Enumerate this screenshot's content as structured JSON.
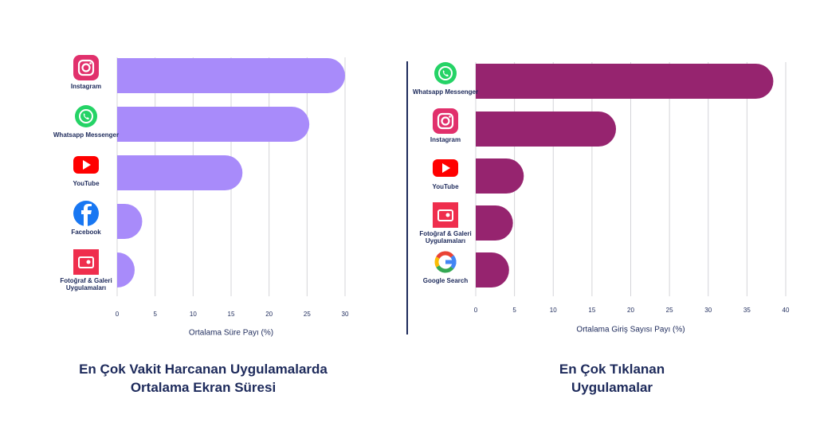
{
  "chart_data": [
    {
      "type": "bar",
      "orientation": "horizontal",
      "title": [
        "En Çok Vakit Harcanan Uygulamalarda",
        "Ortalama Ekran Süresi"
      ],
      "x_label": "Ortalama Süre Payı (%)",
      "categories": [
        "Instagram",
        "Whatsapp Messenger",
        "YouTube",
        "Facebook",
        "Fotoğraf & Galeri Uygulamaları"
      ],
      "values": [
        30,
        25.3,
        16.5,
        3.3,
        2.2
      ],
      "color": "#a88bfa",
      "xlim": [
        0,
        30
      ],
      "xticks": [
        0,
        5,
        10,
        15,
        20,
        25,
        30
      ],
      "grid": true
    },
    {
      "type": "bar",
      "orientation": "horizontal",
      "title": [
        "En Çok Tıklanan",
        "Uygulamalar"
      ],
      "x_label": "Ortalama Giriş Sayısı Payı (%)",
      "categories": [
        "Whatsapp Messenger",
        "Instagram",
        "YouTube",
        "Fotoğraf & Galeri Uygulamaları",
        "Google Search"
      ],
      "values": [
        38.4,
        18.1,
        6.2,
        4.8,
        4.3
      ],
      "color": "#96246f",
      "xlim": [
        0,
        40
      ],
      "xticks": [
        0,
        5,
        10,
        15,
        20,
        25,
        30,
        35,
        40
      ],
      "grid": true
    }
  ]
}
